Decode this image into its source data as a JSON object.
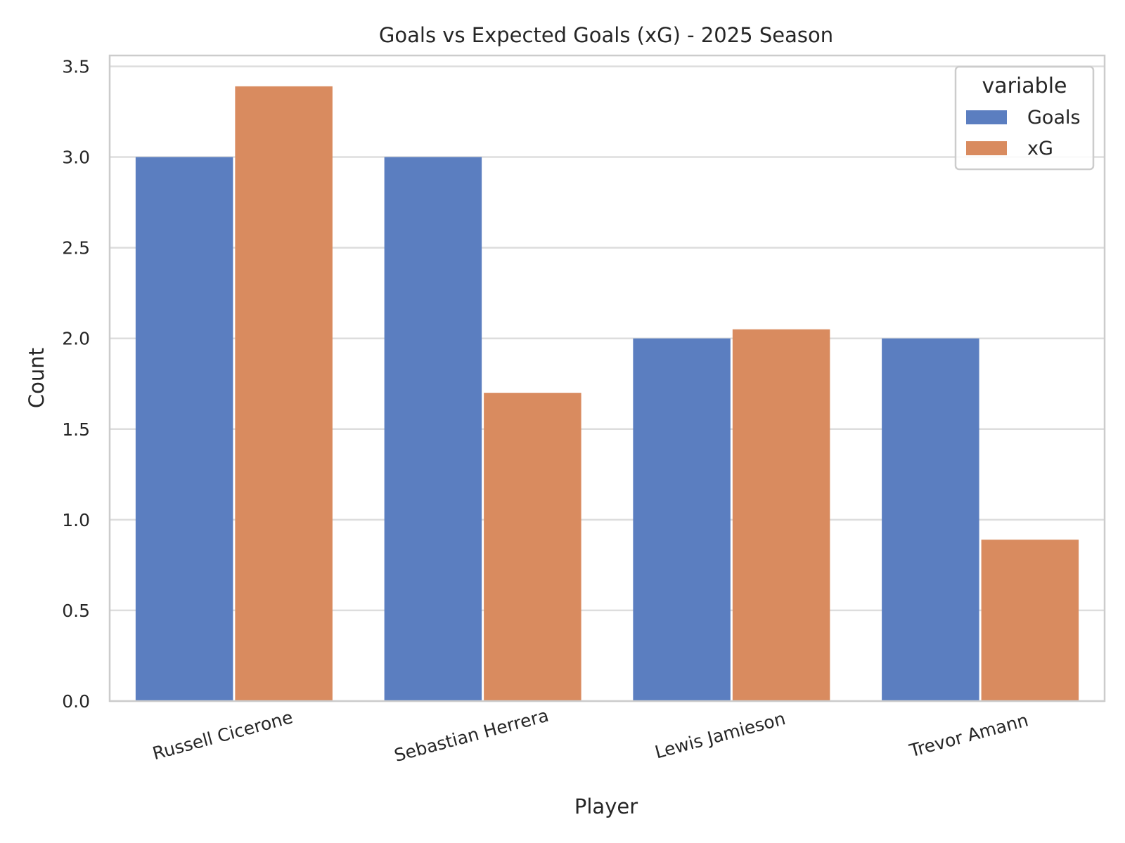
{
  "chart_data": {
    "type": "bar",
    "title": "Goals vs Expected Goals (xG) - 2025 Season",
    "xlabel": "Player",
    "ylabel": "Count",
    "categories": [
      "Russell Cicerone",
      "Sebastian Herrera",
      "Lewis Jamieson",
      "Trevor Amann"
    ],
    "series": [
      {
        "name": "Goals",
        "color": "#5b7ec0",
        "values": [
          3,
          3,
          2,
          2
        ]
      },
      {
        "name": "xG",
        "color": "#d98b5f",
        "values": [
          3.39,
          1.7,
          2.05,
          0.89
        ]
      }
    ],
    "ylim": [
      0,
      3.56
    ],
    "yticks": [
      0.0,
      0.5,
      1.0,
      1.5,
      2.0,
      2.5,
      3.0,
      3.5
    ],
    "ytick_labels": [
      "0.0",
      "0.5",
      "1.0",
      "1.5",
      "2.0",
      "2.5",
      "3.0",
      "3.5"
    ],
    "grid": true,
    "legend": {
      "title": "variable",
      "placement": "top-right"
    }
  }
}
